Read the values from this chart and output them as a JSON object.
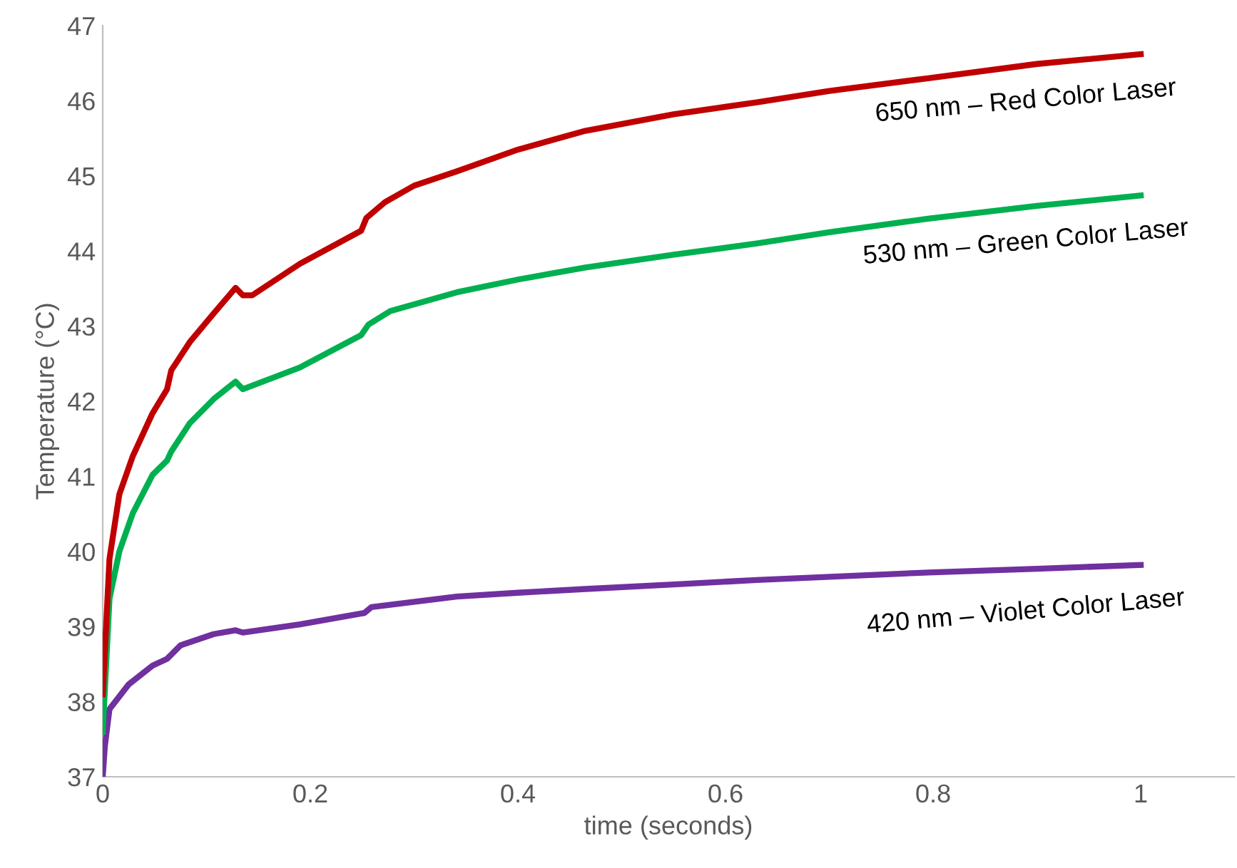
{
  "chart_data": {
    "type": "line",
    "xlabel": "time (seconds)",
    "ylabel": "Temperature (°C)",
    "xlim": [
      0,
      1.09
    ],
    "ylim": [
      37,
      47
    ],
    "xticks": [
      0,
      0.2,
      0.4,
      0.6,
      0.8,
      1
    ],
    "yticks": [
      37,
      38,
      39,
      40,
      41,
      42,
      43,
      44,
      45,
      46,
      47
    ],
    "grid": false,
    "legend": false,
    "marker": "none",
    "line_style": "solid",
    "series": [
      {
        "name": "650 nm – Red Color Laser",
        "color": "#c00000",
        "x": [
          0,
          0.0065,
          0.016,
          0.029,
          0.048,
          0.062,
          0.066,
          0.084,
          0.107,
          0.128,
          0.135,
          0.144,
          0.19,
          0.249,
          0.254,
          0.272,
          0.3,
          0.341,
          0.4,
          0.465,
          0.55,
          0.63,
          0.7,
          0.795,
          0.9,
          1
        ],
        "values": [
          38.1,
          39.9,
          40.76,
          41.27,
          41.84,
          42.16,
          42.41,
          42.79,
          43.17,
          43.51,
          43.41,
          43.41,
          43.83,
          44.27,
          44.44,
          44.65,
          44.87,
          45.06,
          45.35,
          45.6,
          45.82,
          45.98,
          46.13,
          46.3,
          46.49,
          46.62
        ]
      },
      {
        "name": "530 nm – Green Color Laser",
        "color": "#00b050",
        "x": [
          0,
          0.0065,
          0.016,
          0.029,
          0.048,
          0.062,
          0.066,
          0.084,
          0.107,
          0.128,
          0.135,
          0.19,
          0.249,
          0.256,
          0.277,
          0.341,
          0.4,
          0.465,
          0.55,
          0.63,
          0.7,
          0.795,
          0.9,
          1
        ],
        "values": [
          37.6,
          39.37,
          40.0,
          40.51,
          41.02,
          41.21,
          41.33,
          41.71,
          42.03,
          42.26,
          42.16,
          42.45,
          42.88,
          43.02,
          43.2,
          43.45,
          43.62,
          43.78,
          43.95,
          44.1,
          44.25,
          44.43,
          44.6,
          44.74
        ]
      },
      {
        "name": "420 nm – Violet Color Laser",
        "color": "#7030a0",
        "x": [
          0,
          0.002,
          0.0065,
          0.025,
          0.048,
          0.062,
          0.075,
          0.107,
          0.128,
          0.135,
          0.19,
          0.252,
          0.259,
          0.341,
          0.4,
          0.465,
          0.55,
          0.63,
          0.795,
          0.9,
          1
        ],
        "values": [
          37.0,
          37.4,
          37.9,
          38.23,
          38.48,
          38.57,
          38.75,
          38.9,
          38.95,
          38.92,
          39.03,
          39.18,
          39.26,
          39.4,
          39.45,
          39.5,
          39.56,
          39.62,
          39.72,
          39.77,
          39.82
        ]
      }
    ]
  }
}
